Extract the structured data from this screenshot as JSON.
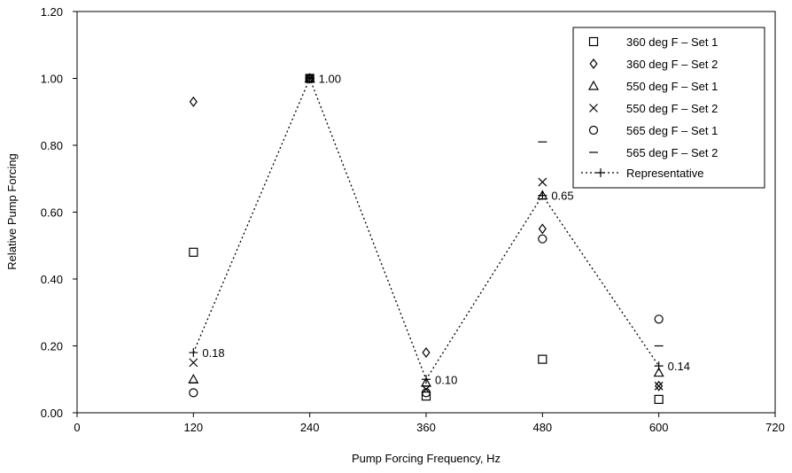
{
  "chart_data": {
    "type": "scatter",
    "title": "",
    "xlabel": "Pump Forcing Frequency, Hz",
    "ylabel": "Relative Pump Forcing",
    "xlim": [
      0,
      720
    ],
    "ylim": [
      0,
      1.2
    ],
    "x_ticks": [
      "0",
      "120",
      "240",
      "360",
      "480",
      "600",
      "720"
    ],
    "x_tick_values": [
      0,
      120,
      240,
      360,
      480,
      600,
      720
    ],
    "y_ticks": [
      "0.00",
      "0.20",
      "0.40",
      "0.60",
      "0.80",
      "1.00",
      "1.20"
    ],
    "y_tick_values": [
      0,
      0.2,
      0.4,
      0.6,
      0.8,
      1.0,
      1.2
    ],
    "grid": false,
    "legend_position": "top-right",
    "series": [
      {
        "name": "360 deg F - Set 1",
        "marker": "square",
        "x": [
          120,
          240,
          360,
          480,
          600
        ],
        "y": [
          0.48,
          1.0,
          0.05,
          0.16,
          0.04
        ]
      },
      {
        "name": "360 deg F - Set 2",
        "marker": "diamond",
        "x": [
          120,
          240,
          360,
          480,
          600
        ],
        "y": [
          0.93,
          1.0,
          0.18,
          0.55,
          0.08
        ]
      },
      {
        "name": "550 deg F - Set 1",
        "marker": "triangle",
        "x": [
          120,
          240,
          360,
          480,
          600
        ],
        "y": [
          0.1,
          1.0,
          0.09,
          0.65,
          0.12
        ]
      },
      {
        "name": "550 deg F - Set 2",
        "marker": "x",
        "x": [
          120,
          240,
          360,
          480,
          600
        ],
        "y": [
          0.15,
          1.0,
          0.07,
          0.69,
          0.08
        ]
      },
      {
        "name": "565 deg F - Set 1",
        "marker": "circle",
        "x": [
          120,
          240,
          360,
          480,
          600
        ],
        "y": [
          0.06,
          1.0,
          0.06,
          0.52,
          0.28
        ]
      },
      {
        "name": "565 deg F - Set 2",
        "marker": "dash",
        "x": [
          120,
          240,
          360,
          480,
          600
        ],
        "y": [
          0.09,
          1.0,
          0.08,
          0.81,
          0.2
        ]
      },
      {
        "name": "Representative",
        "marker": "plus",
        "line": "dotted",
        "x": [
          120,
          240,
          360,
          480,
          600
        ],
        "y": [
          0.18,
          1.0,
          0.1,
          0.65,
          0.14
        ]
      }
    ],
    "data_labels": [
      {
        "x": 120,
        "y": 0.18,
        "text": "0.18"
      },
      {
        "x": 240,
        "y": 1.0,
        "text": "1.00"
      },
      {
        "x": 360,
        "y": 0.1,
        "text": "0.10"
      },
      {
        "x": 480,
        "y": 0.65,
        "text": "0.65"
      },
      {
        "x": 600,
        "y": 0.14,
        "text": "0.14"
      }
    ],
    "legend_labels": {
      "s1": "360 deg F – Set 1",
      "s2": "360 deg F – Set 2",
      "s3": "550 deg F – Set 1",
      "s4": "550 deg F – Set 2",
      "s5": "565 deg F – Set 1",
      "s6": "565 deg F – Set 2",
      "s7": "Representative"
    }
  }
}
